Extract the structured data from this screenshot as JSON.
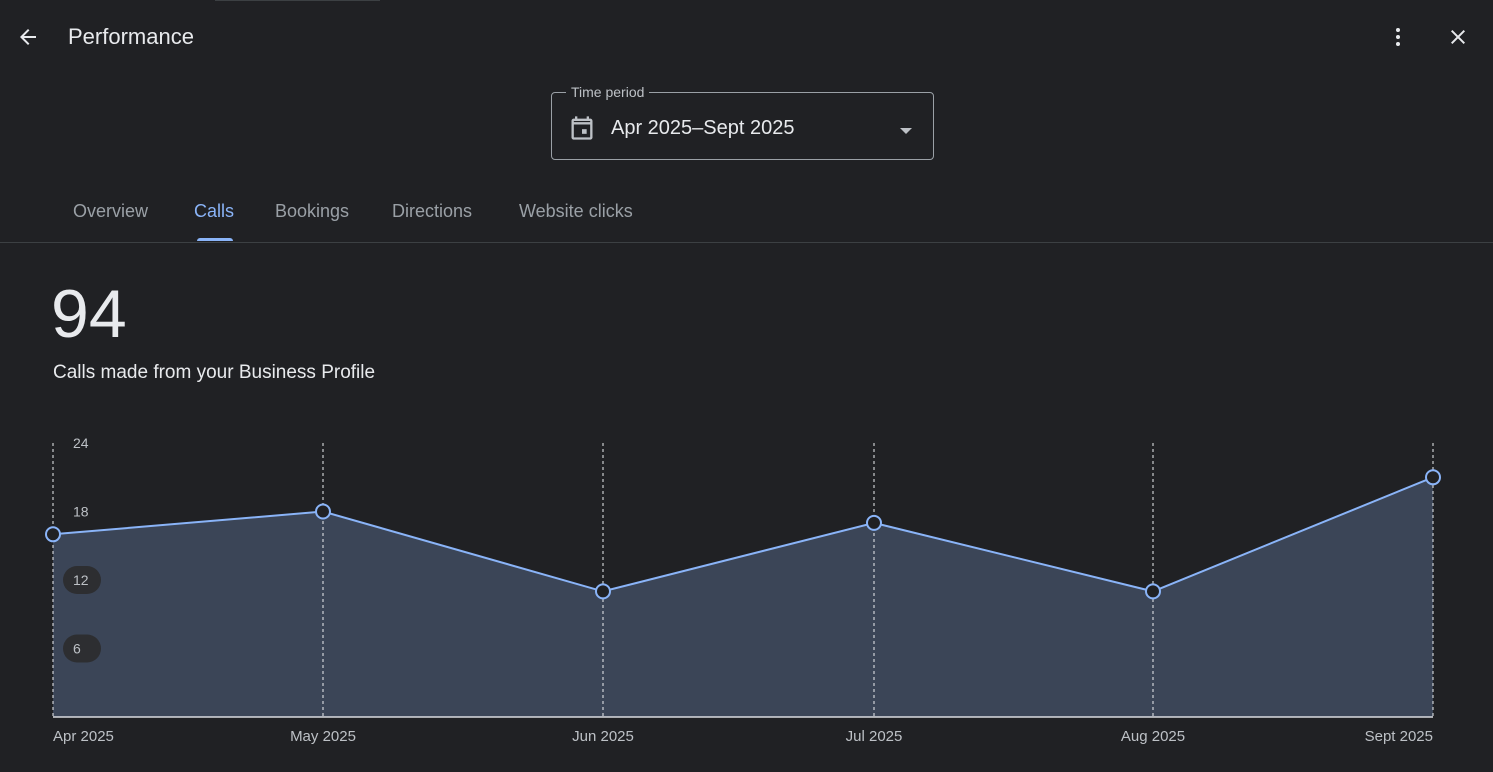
{
  "header": {
    "title": "Performance",
    "back_icon": "arrow-back-icon",
    "more_icon": "more-vert-icon",
    "close_icon": "close-icon"
  },
  "time_period": {
    "label": "Time period",
    "value": "Apr 2025–Sept 2025",
    "icon": "calendar-icon"
  },
  "tabs": [
    {
      "label": "Overview",
      "active": false
    },
    {
      "label": "Calls",
      "active": true
    },
    {
      "label": "Bookings",
      "active": false
    },
    {
      "label": "Directions",
      "active": false
    },
    {
      "label": "Website clicks",
      "active": false
    }
  ],
  "metric": {
    "value": "94",
    "label": "Calls made from your Business Profile"
  },
  "colors": {
    "background": "#202124",
    "accent": "#8ab4f8",
    "area_fill": "#3b4557"
  },
  "chart_data": {
    "type": "area",
    "x": [
      "Apr 2025",
      "May 2025",
      "Jun 2025",
      "Jul 2025",
      "Aug 2025",
      "Sept 2025"
    ],
    "series": [
      {
        "values": [
          16,
          18,
          11,
          17,
          11,
          21
        ]
      }
    ],
    "ylim": [
      0,
      24
    ],
    "yticks": [
      "6",
      "12",
      "18",
      "24"
    ],
    "grid": "vertical dashed lines at each month"
  }
}
